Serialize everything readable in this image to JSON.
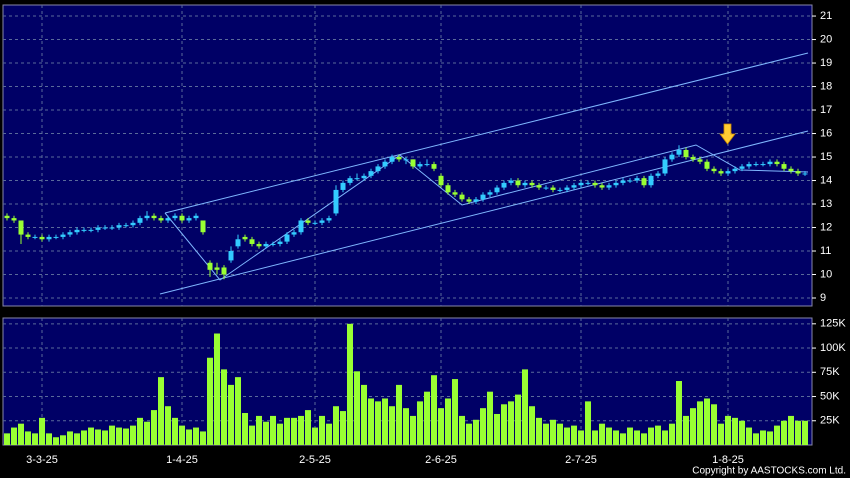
{
  "chart_data": {
    "type": "candlestick",
    "copyright": "Copyright by AASTOCKS.com Ltd.",
    "categories": [
      null,
      null,
      null,
      null,
      null,
      "3-3-25",
      null,
      null,
      null,
      null,
      null,
      null,
      null,
      null,
      null,
      null,
      null,
      null,
      null,
      null,
      null,
      null,
      null,
      null,
      null,
      "1-4-25",
      null,
      null,
      null,
      null,
      null,
      null,
      null,
      null,
      null,
      null,
      null,
      null,
      null,
      null,
      null,
      null,
      null,
      null,
      "2-5-25",
      null,
      null,
      null,
      null,
      null,
      null,
      null,
      null,
      null,
      null,
      null,
      null,
      null,
      null,
      null,
      null,
      null,
      "2-6-25",
      null,
      null,
      null,
      null,
      null,
      null,
      null,
      null,
      null,
      null,
      null,
      null,
      null,
      null,
      null,
      null,
      null,
      null,
      null,
      "2-7-25",
      null,
      null,
      null,
      null,
      null,
      null,
      null,
      null,
      null,
      null,
      null,
      null,
      null,
      null,
      null,
      null,
      null,
      null,
      null,
      null,
      "1-8-25",
      null,
      null,
      null,
      null,
      null,
      null,
      null,
      null,
      null,
      null,
      null
    ],
    "up_color": "#33ccff",
    "down_color": "#99ff33",
    "ohlc": [
      [
        12.5,
        12.6,
        12.3,
        12.4
      ],
      [
        12.4,
        12.5,
        12.2,
        12.3
      ],
      [
        12.3,
        12.3,
        11.3,
        11.7
      ],
      [
        11.7,
        11.8,
        11.5,
        11.6
      ],
      [
        11.6,
        11.7,
        11.5,
        11.6
      ],
      [
        11.6,
        11.7,
        11.4,
        11.5
      ],
      [
        11.5,
        11.7,
        11.4,
        11.6
      ],
      [
        11.6,
        11.7,
        11.5,
        11.6
      ],
      [
        11.6,
        11.8,
        11.5,
        11.7
      ],
      [
        11.7,
        11.9,
        11.6,
        11.8
      ],
      [
        11.8,
        12.0,
        11.7,
        11.9
      ],
      [
        11.9,
        12.0,
        11.8,
        11.9
      ],
      [
        11.9,
        12.0,
        11.8,
        11.9
      ],
      [
        11.9,
        12.1,
        11.8,
        12.0
      ],
      [
        12.0,
        12.1,
        11.9,
        12.0
      ],
      [
        12.0,
        12.1,
        11.9,
        12.0
      ],
      [
        12.0,
        12.2,
        11.9,
        12.1
      ],
      [
        12.1,
        12.2,
        12.0,
        12.1
      ],
      [
        12.1,
        12.3,
        12.0,
        12.2
      ],
      [
        12.2,
        12.5,
        12.1,
        12.4
      ],
      [
        12.4,
        12.7,
        12.3,
        12.5
      ],
      [
        12.5,
        12.6,
        12.3,
        12.4
      ],
      [
        12.4,
        12.5,
        12.2,
        12.3
      ],
      [
        12.3,
        12.5,
        12.2,
        12.4
      ],
      [
        12.4,
        12.6,
        12.3,
        12.5
      ],
      [
        12.5,
        12.6,
        12.2,
        12.3
      ],
      [
        12.3,
        12.5,
        12.2,
        12.4
      ],
      [
        12.4,
        12.6,
        12.3,
        12.5
      ],
      [
        12.3,
        12.3,
        11.7,
        11.8
      ],
      [
        10.5,
        10.6,
        9.9,
        10.2
      ],
      [
        10.3,
        10.5,
        10.0,
        10.2
      ],
      [
        10.3,
        10.4,
        9.8,
        10.0
      ],
      [
        10.6,
        11.2,
        10.5,
        11.0
      ],
      [
        11.2,
        11.7,
        11.1,
        11.5
      ],
      [
        11.6,
        11.7,
        11.4,
        11.5
      ],
      [
        11.5,
        11.6,
        11.2,
        11.3
      ],
      [
        11.3,
        11.4,
        11.1,
        11.2
      ],
      [
        11.2,
        11.4,
        11.1,
        11.3
      ],
      [
        11.3,
        11.4,
        11.2,
        11.3
      ],
      [
        11.3,
        11.5,
        11.2,
        11.4
      ],
      [
        11.4,
        11.8,
        11.3,
        11.7
      ],
      [
        11.7,
        11.9,
        11.6,
        11.8
      ],
      [
        11.8,
        12.4,
        11.7,
        12.3
      ],
      [
        12.3,
        12.4,
        12.1,
        12.2
      ],
      [
        12.2,
        12.3,
        12.1,
        12.2
      ],
      [
        12.2,
        12.4,
        12.1,
        12.3
      ],
      [
        12.3,
        12.5,
        12.2,
        12.4
      ],
      [
        12.6,
        13.8,
        12.5,
        13.6
      ],
      [
        13.6,
        14.0,
        13.5,
        13.9
      ],
      [
        13.9,
        14.2,
        13.8,
        14.1
      ],
      [
        14.1,
        14.3,
        14.0,
        14.1
      ],
      [
        14.1,
        14.3,
        14.0,
        14.2
      ],
      [
        14.2,
        14.5,
        14.1,
        14.4
      ],
      [
        14.4,
        14.7,
        14.3,
        14.6
      ],
      [
        14.6,
        14.9,
        14.5,
        14.8
      ],
      [
        14.8,
        15.1,
        14.7,
        15.0
      ],
      [
        15.0,
        15.1,
        14.8,
        14.9
      ],
      [
        14.9,
        15.0,
        14.7,
        14.9
      ],
      [
        14.9,
        14.9,
        14.5,
        14.6
      ],
      [
        14.6,
        14.8,
        14.5,
        14.7
      ],
      [
        14.7,
        14.9,
        14.6,
        14.7
      ],
      [
        14.7,
        14.8,
        14.4,
        14.5
      ],
      [
        14.2,
        14.3,
        13.7,
        13.8
      ],
      [
        13.8,
        13.9,
        13.4,
        13.5
      ],
      [
        13.5,
        13.6,
        13.3,
        13.4
      ],
      [
        13.4,
        13.5,
        13.1,
        13.2
      ],
      [
        13.2,
        13.3,
        13.0,
        13.1
      ],
      [
        13.1,
        13.3,
        13.0,
        13.2
      ],
      [
        13.2,
        13.5,
        13.1,
        13.4
      ],
      [
        13.4,
        13.6,
        13.3,
        13.5
      ],
      [
        13.5,
        13.8,
        13.4,
        13.7
      ],
      [
        13.7,
        14.0,
        13.6,
        13.9
      ],
      [
        13.9,
        14.1,
        13.8,
        14.0
      ],
      [
        14.0,
        14.1,
        13.7,
        13.8
      ],
      [
        13.8,
        14.0,
        13.7,
        13.9
      ],
      [
        13.9,
        14.0,
        13.7,
        13.8
      ],
      [
        13.8,
        13.9,
        13.6,
        13.7
      ],
      [
        13.7,
        13.8,
        13.6,
        13.7
      ],
      [
        13.7,
        13.8,
        13.5,
        13.6
      ],
      [
        13.6,
        13.7,
        13.5,
        13.6
      ],
      [
        13.6,
        13.8,
        13.5,
        13.7
      ],
      [
        13.7,
        13.9,
        13.6,
        13.8
      ],
      [
        13.8,
        14.0,
        13.7,
        13.9
      ],
      [
        13.9,
        14.0,
        13.8,
        13.9
      ],
      [
        13.9,
        14.0,
        13.7,
        13.8
      ],
      [
        13.8,
        13.9,
        13.6,
        13.7
      ],
      [
        13.7,
        13.9,
        13.6,
        13.8
      ],
      [
        13.8,
        14.0,
        13.7,
        13.9
      ],
      [
        13.9,
        14.1,
        13.8,
        14.0
      ],
      [
        14.0,
        14.1,
        13.9,
        14.0
      ],
      [
        14.0,
        14.2,
        13.9,
        14.1
      ],
      [
        14.1,
        14.2,
        13.7,
        13.8
      ],
      [
        13.8,
        14.3,
        13.7,
        14.2
      ],
      [
        14.2,
        14.4,
        14.1,
        14.3
      ],
      [
        14.3,
        15.0,
        14.2,
        14.9
      ],
      [
        14.9,
        15.2,
        14.8,
        15.1
      ],
      [
        15.1,
        15.5,
        15.0,
        15.3
      ],
      [
        15.3,
        15.4,
        14.9,
        15.0
      ],
      [
        15.0,
        15.1,
        14.8,
        14.9
      ],
      [
        14.9,
        15.0,
        14.7,
        14.8
      ],
      [
        14.8,
        14.9,
        14.4,
        14.5
      ],
      [
        14.5,
        14.6,
        14.3,
        14.4
      ],
      [
        14.4,
        14.5,
        14.2,
        14.3
      ],
      [
        14.3,
        14.5,
        14.2,
        14.4
      ],
      [
        14.4,
        14.6,
        14.3,
        14.5
      ],
      [
        14.5,
        14.7,
        14.4,
        14.6
      ],
      [
        14.6,
        14.8,
        14.5,
        14.7
      ],
      [
        14.7,
        14.8,
        14.6,
        14.7
      ],
      [
        14.7,
        14.8,
        14.6,
        14.7
      ],
      [
        14.7,
        14.9,
        14.6,
        14.8
      ],
      [
        14.8,
        14.9,
        14.6,
        14.7
      ],
      [
        14.7,
        14.8,
        14.4,
        14.5
      ],
      [
        14.5,
        14.6,
        14.3,
        14.4
      ],
      [
        14.4,
        14.5,
        14.2,
        14.3
      ],
      [
        14.3,
        14.4,
        14.2,
        14.3
      ]
    ],
    "ylim": [
      8.66,
      21.47
    ],
    "yticks": [
      9,
      10,
      11,
      12,
      13,
      14,
      15,
      16,
      17,
      18,
      19,
      20,
      21
    ],
    "volume": {
      "color": "#99ff33",
      "values": [
        12000,
        18000,
        22000,
        14000,
        12000,
        28000,
        12000,
        8000,
        10000,
        14000,
        12000,
        15000,
        18000,
        16000,
        15000,
        20000,
        18000,
        17000,
        20000,
        28000,
        24000,
        36000,
        70000,
        40000,
        28000,
        20000,
        16000,
        18000,
        14000,
        90000,
        115000,
        78000,
        62000,
        70000,
        33000,
        20000,
        30000,
        24000,
        30000,
        22000,
        28000,
        28000,
        30000,
        36000,
        18000,
        30000,
        22000,
        40000,
        35000,
        125000,
        76000,
        62000,
        48000,
        45000,
        48000,
        40000,
        62000,
        38000,
        30000,
        45000,
        55000,
        72000,
        38000,
        48000,
        68000,
        30000,
        22000,
        26000,
        38000,
        55000,
        32000,
        42000,
        45000,
        52000,
        78000,
        40000,
        28000,
        22000,
        26000,
        22000,
        18000,
        20000,
        15000,
        45000,
        15000,
        22000,
        18000,
        15000,
        12000,
        18000,
        15000,
        12000,
        18000,
        20000,
        15000,
        22000,
        66000,
        30000,
        38000,
        45000,
        48000,
        42000,
        22000,
        30000,
        28000,
        25000,
        18000,
        12000,
        15000,
        14000,
        20000,
        25000,
        30000,
        25000,
        25000
      ],
      "ylim": [
        0,
        131000
      ],
      "yticks": [
        {
          "value": 25000,
          "label": "25K"
        },
        {
          "value": 50000,
          "label": "50K"
        },
        {
          "value": 75000,
          "label": "75K"
        },
        {
          "value": 100000,
          "label": "100K"
        },
        {
          "value": 125000,
          "label": "125K"
        }
      ]
    }
  }
}
